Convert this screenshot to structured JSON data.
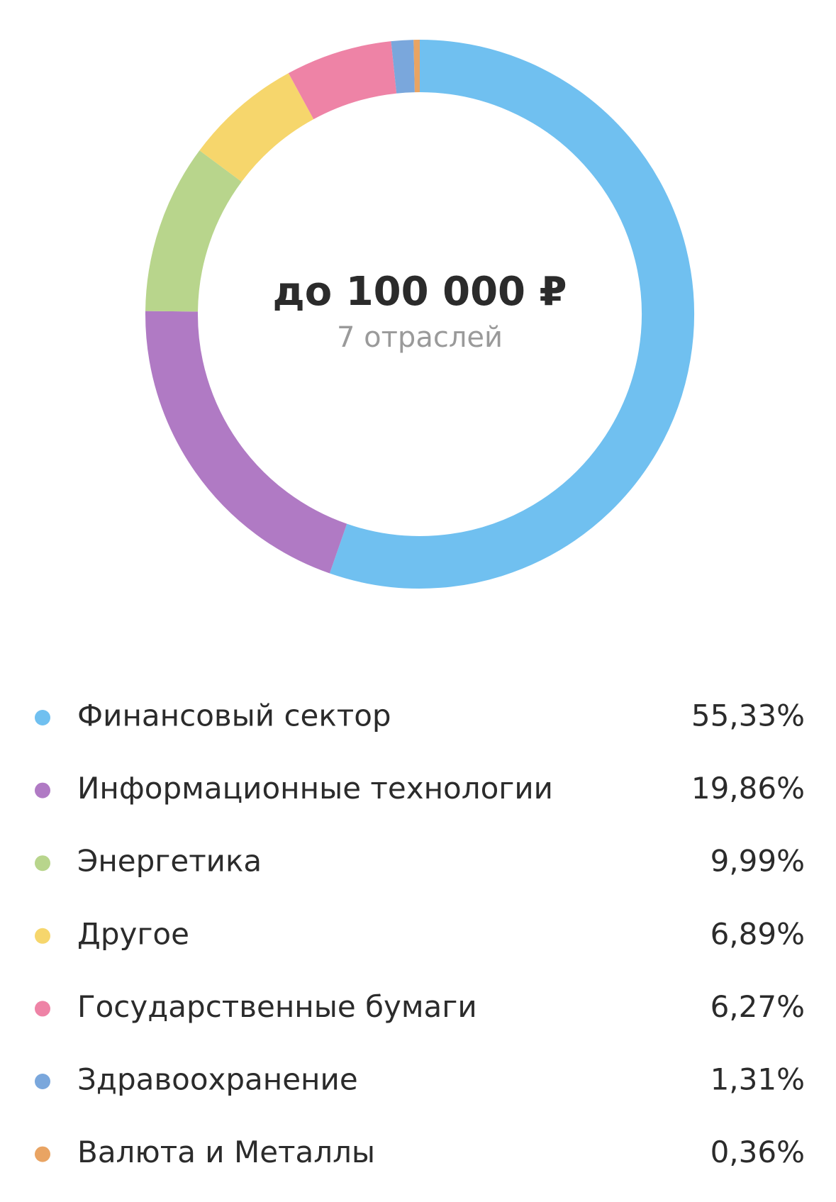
{
  "chart_data": {
    "type": "pie",
    "donut": true,
    "center_title": "до 100 000 ₽",
    "center_subtitle": "7 отраслей",
    "categories": [
      "Финансовый сектор",
      "Информационные технологии",
      "Энергетика",
      "Другое",
      "Государственные бумаги",
      "Здравоохранение",
      "Валюта и Металлы"
    ],
    "values": [
      55.33,
      19.86,
      9.99,
      6.89,
      6.27,
      1.31,
      0.36
    ],
    "value_labels": [
      "55,33%",
      "19,86%",
      "9,99%",
      "6,89%",
      "6,27%",
      "1,31%",
      "0,36%"
    ],
    "colors": [
      "#70c0f0",
      "#b07ac4",
      "#b8d58c",
      "#f6d66c",
      "#ee83a6",
      "#7aa7dc",
      "#e9a463"
    ]
  }
}
